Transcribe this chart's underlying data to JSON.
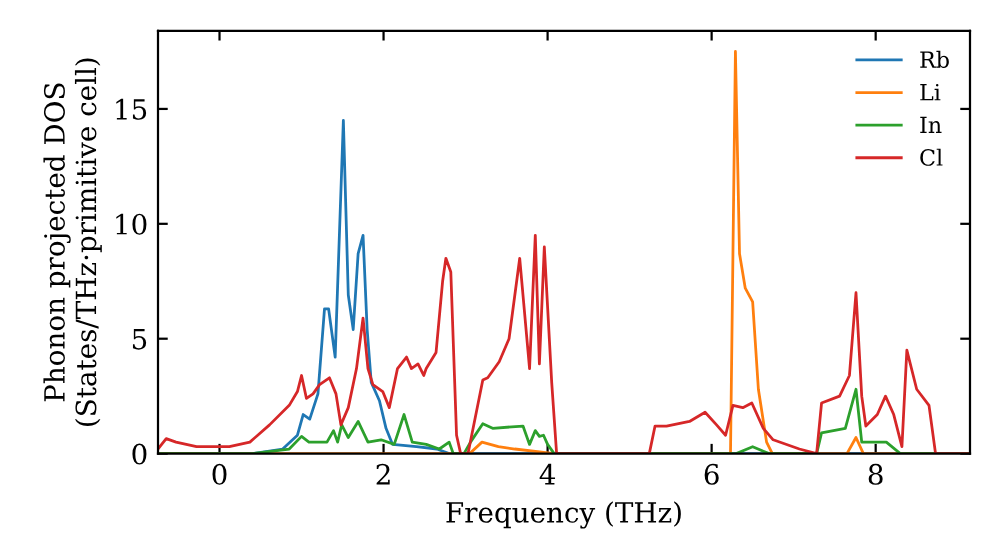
{
  "chart_data": {
    "type": "line",
    "xlabel": "Frequency (THz)",
    "ylabel": "Phonon projected DOS\n(States/THz·primitive cell)",
    "xlim": [
      -0.75,
      9.15
    ],
    "ylim": [
      0,
      18.4
    ],
    "xticks": [
      0,
      2,
      4,
      6,
      8
    ],
    "yticks": [
      0,
      5,
      10,
      15
    ],
    "grid": false,
    "legend": "top right",
    "marker": "none",
    "line_style": "solid",
    "series": [
      {
        "name": "Rb",
        "color": "#1f77b4",
        "x": [
          -0.75,
          0.4,
          0.77,
          0.95,
          1.02,
          1.1,
          1.2,
          1.28,
          1.33,
          1.41,
          1.51,
          1.57,
          1.63,
          1.69,
          1.75,
          1.8,
          1.85,
          1.95,
          2.03,
          2.11,
          2.4,
          2.65,
          2.8,
          9.15
        ],
        "values": [
          0,
          0,
          0.2,
          0.8,
          1.7,
          1.5,
          2.6,
          6.3,
          6.3,
          4.2,
          14.5,
          6.9,
          5.4,
          8.7,
          9.5,
          5.4,
          3.1,
          2.3,
          1.1,
          0.4,
          0.3,
          0.2,
          0,
          0
        ]
      },
      {
        "name": "Li",
        "color": "#ff7f0e",
        "x": [
          -0.75,
          3.05,
          3.2,
          3.4,
          3.6,
          4.08,
          6.23,
          6.29,
          6.34,
          6.41,
          6.5,
          6.57,
          6.67,
          6.74,
          7.65,
          7.76,
          7.85,
          9.15
        ],
        "values": [
          0,
          0,
          0.5,
          0.3,
          0.2,
          0,
          0,
          17.5,
          8.7,
          7.2,
          6.6,
          2.8,
          0.5,
          0,
          0,
          0.7,
          0,
          0
        ]
      },
      {
        "name": "In",
        "color": "#2ca02c",
        "x": [
          -0.75,
          0.4,
          0.85,
          1.0,
          1.09,
          1.31,
          1.39,
          1.44,
          1.49,
          1.57,
          1.69,
          1.81,
          1.97,
          2.13,
          2.25,
          2.35,
          2.52,
          2.68,
          2.8,
          2.85,
          2.98,
          3.06,
          3.21,
          3.33,
          3.7,
          3.78,
          3.85,
          3.9,
          3.95,
          4.0,
          4.08,
          6.3,
          6.5,
          6.7,
          7.28,
          7.34,
          7.63,
          7.76,
          7.83,
          8.13,
          8.3,
          9.15
        ],
        "values": [
          0,
          0,
          0.2,
          0.75,
          0.5,
          0.5,
          1.0,
          0.5,
          1.25,
          0.7,
          1.4,
          0.5,
          0.6,
          0.4,
          1.7,
          0.5,
          0.4,
          0.2,
          0.5,
          0,
          0,
          0.5,
          1.3,
          1.1,
          1.2,
          0.4,
          1.0,
          0.75,
          0.8,
          0.4,
          0,
          0,
          0.3,
          0,
          0,
          0.9,
          1.1,
          2.8,
          0.5,
          0.5,
          0,
          0
        ]
      },
      {
        "name": "Cl",
        "color": "#d62728",
        "x": [
          -0.75,
          -0.65,
          -0.53,
          -0.28,
          0.12,
          0.37,
          0.61,
          0.85,
          0.95,
          1.0,
          1.06,
          1.14,
          1.22,
          1.34,
          1.42,
          1.48,
          1.57,
          1.67,
          1.75,
          1.81,
          1.87,
          1.99,
          2.07,
          2.17,
          2.28,
          2.34,
          2.42,
          2.49,
          2.52,
          2.64,
          2.72,
          2.76,
          2.82,
          2.89,
          2.94,
          3.03,
          3.21,
          3.27,
          3.41,
          3.53,
          3.66,
          3.78,
          3.85,
          3.9,
          3.96,
          4.05,
          4.11,
          5.24,
          5.31,
          5.45,
          5.73,
          5.92,
          6.06,
          6.17,
          6.26,
          6.38,
          6.49,
          6.63,
          6.75,
          7.07,
          7.28,
          7.34,
          7.56,
          7.68,
          7.76,
          7.83,
          7.88,
          8.02,
          8.12,
          8.22,
          8.32,
          8.38,
          8.5,
          8.65,
          8.73,
          9.15
        ],
        "values": [
          0.2,
          0.65,
          0.5,
          0.3,
          0.3,
          0.5,
          1.25,
          2.1,
          2.7,
          3.4,
          2.4,
          2.6,
          3.0,
          3.3,
          2.6,
          1.25,
          2.0,
          3.7,
          5.9,
          3.7,
          3.0,
          2.7,
          2.0,
          3.7,
          4.2,
          3.7,
          3.9,
          3.4,
          3.7,
          4.4,
          7.5,
          8.5,
          7.9,
          0.8,
          0,
          0,
          3.2,
          3.3,
          4.0,
          5.0,
          8.5,
          3.7,
          9.5,
          3.9,
          9.0,
          3.1,
          0,
          0,
          1.2,
          1.2,
          1.4,
          1.8,
          1.25,
          0.8,
          2.1,
          2.0,
          2.2,
          1.1,
          0.6,
          0.2,
          0,
          2.2,
          2.5,
          3.4,
          7.0,
          2.5,
          1.2,
          1.7,
          2.5,
          1.7,
          0.3,
          4.5,
          2.8,
          2.1,
          0,
          0
        ]
      }
    ]
  }
}
